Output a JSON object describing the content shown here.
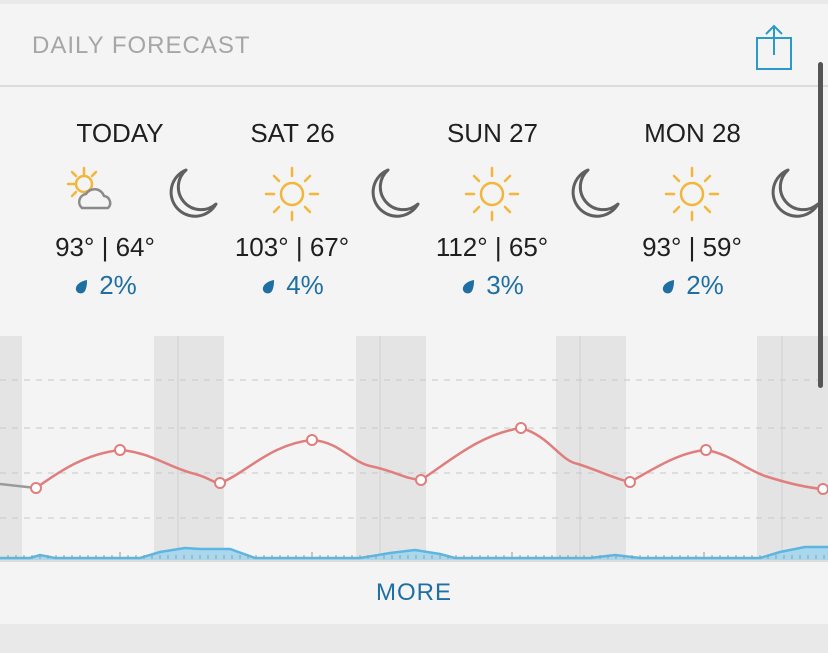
{
  "header": {
    "title": "DAILY FORECAST",
    "share_icon": "share-icon"
  },
  "days": [
    {
      "name": "TODAY",
      "temps": "93° | 64°",
      "precip": "2%",
      "icon": "partly-sunny-icon"
    },
    {
      "name": "SAT 26",
      "temps": "103° | 67°",
      "precip": "4%",
      "icon": "sun-icon"
    },
    {
      "name": "SUN 27",
      "temps": "112° | 65°",
      "precip": "3%",
      "icon": "sun-icon"
    },
    {
      "name": "MON 28",
      "temps": "93° | 59°",
      "precip": "2%",
      "icon": "sun-icon"
    }
  ],
  "night_icon": "moon-icon",
  "precip_icon": "raindrop-icon",
  "footer": {
    "more_label": "MORE"
  },
  "colors": {
    "temperature_line": "#e07e7e",
    "precip_fill": "#a9d8ee",
    "precip_line": "#5cb6e0",
    "accent": "#1f6fa3",
    "sun": "#f4b63a"
  }
}
